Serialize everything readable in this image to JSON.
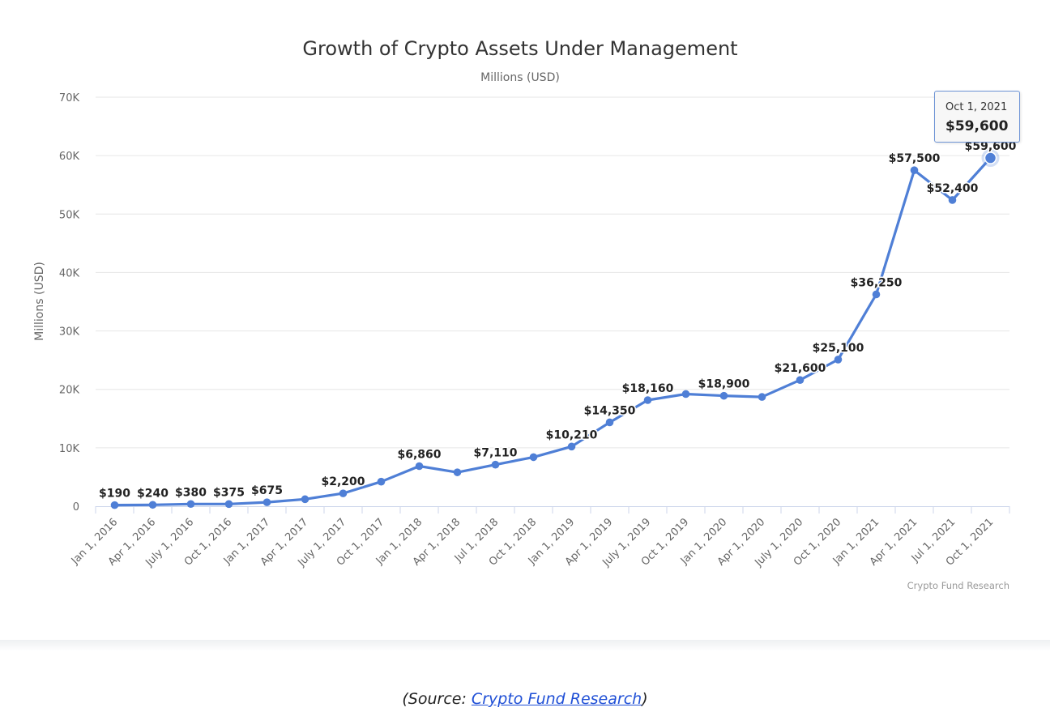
{
  "chart_data": {
    "type": "line",
    "title": "Growth of Crypto Assets Under Management",
    "subtitle": "Millions (USD)",
    "ylabel": "Millions (USD)",
    "xlabel": "",
    "ylim": [
      0,
      70000
    ],
    "y_ticks": [
      0,
      10000,
      20000,
      30000,
      40000,
      50000,
      60000,
      70000
    ],
    "y_tick_labels": [
      "0",
      "10K",
      "20K",
      "30K",
      "40K",
      "50K",
      "60K",
      "70K"
    ],
    "grid": true,
    "legend": "none",
    "color": "#4f7fd6",
    "categories": [
      "Jan 1, 2016",
      "Apr 1, 2016",
      "July 1, 2016",
      "Oct 1, 2016",
      "Jan 1, 2017",
      "Apr 1, 2017",
      "July 1, 2017",
      "Oct 1, 2017",
      "Jan 1, 2018",
      "Apr 1, 2018",
      "Jul 1, 2018",
      "Oct 1, 2018",
      "Jan 1, 2019",
      "Apr 1, 2019",
      "July 1, 2019",
      "Oct 1, 2019",
      "Jan 1, 2020",
      "Apr 1, 2020",
      "July 1, 2020",
      "Oct 1, 2020",
      "Jan 1, 2021",
      "Apr 1, 2021",
      "Jul 1, 2021",
      "Oct 1, 2021"
    ],
    "values": [
      190,
      240,
      380,
      375,
      675,
      1200,
      2200,
      4200,
      6860,
      5800,
      7110,
      8400,
      10210,
      14350,
      18160,
      19200,
      18900,
      18700,
      21600,
      25100,
      36250,
      57500,
      52400,
      59600
    ],
    "data_labels": [
      "$190",
      "$240",
      "$380",
      "$375",
      "$675",
      "",
      "$2,200",
      "",
      "$6,860",
      "",
      "$7,110",
      "",
      "$10,210",
      "$14,350",
      "$18,160",
      "",
      "$18,900",
      "",
      "$21,600",
      "$25,100",
      "$36,250",
      "$57,500",
      "$52,400",
      "$59,600"
    ],
    "highlight_index": 23,
    "tooltip": {
      "date": "Oct 1, 2021",
      "value": "$59,600"
    },
    "credit": "Crypto Fund Research"
  },
  "caption": {
    "prefix": "(Source: ",
    "link_text": "Crypto Fund Research",
    "suffix": ")"
  }
}
